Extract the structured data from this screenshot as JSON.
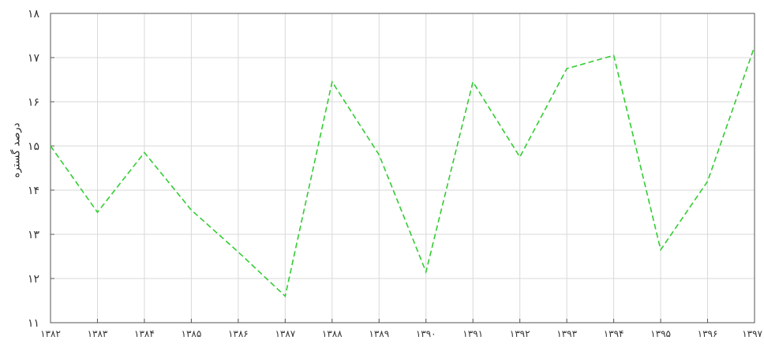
{
  "chart_data": {
    "type": "line",
    "title": "",
    "xlabel": "",
    "ylabel": "درصد گستره",
    "x": [
      "۱۳۸۲",
      "۱۳۸۳",
      "۱۳۸۴",
      "۱۳۸۵",
      "۱۳۸۶",
      "۱۳۸۷",
      "۱۳۸۸",
      "۱۳۸۹",
      "۱۳۹۰",
      "۱۳۹۱",
      "۱۳۹۲",
      "۱۳۹۳",
      "۱۳۹۴",
      "۱۳۹۵",
      "۱۳۹۶",
      "۱۳۹۷"
    ],
    "yticks": [
      "۱۱",
      "۱۲",
      "۱۳",
      "۱۴",
      "۱۵",
      "۱۶",
      "۱۷",
      "۱۸"
    ],
    "ylim": [
      11,
      18
    ],
    "grid": true,
    "series": [
      {
        "color": "#33cc33",
        "style": "dashed",
        "values": [
          15.0,
          13.5,
          14.85,
          13.55,
          12.6,
          11.6,
          16.45,
          14.8,
          12.15,
          16.45,
          14.75,
          16.75,
          17.05,
          12.65,
          14.2,
          17.25
        ]
      }
    ]
  }
}
